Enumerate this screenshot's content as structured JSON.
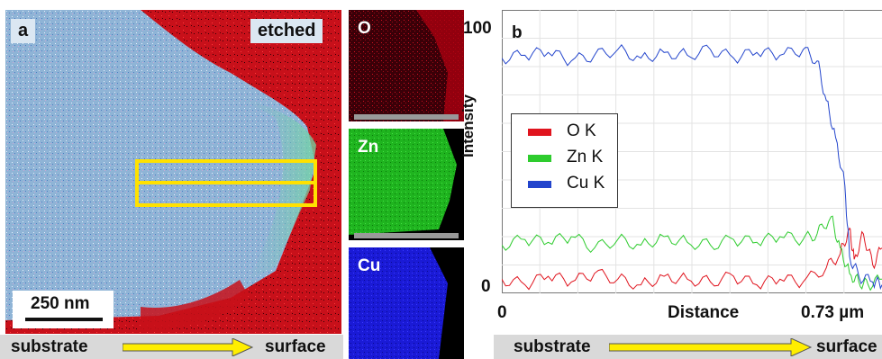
{
  "panel_a": {
    "label": "a",
    "tag": "etched",
    "scale_bar": "250 nm"
  },
  "maps": [
    {
      "label": "O",
      "color": "#b00010",
      "scale_color": "#999999"
    },
    {
      "label": "Zn",
      "color": "#1fb41f",
      "scale_color": "#999999"
    },
    {
      "label": "Cu",
      "color": "#1a1ad6",
      "scale_color": "#999999"
    }
  ],
  "direction": {
    "left_label": "substrate",
    "right_label": "surface",
    "arrow_color": "#ffee00"
  },
  "colors": {
    "oxygen_red": "#e0141e",
    "zinc_green": "#2ecc2e",
    "copper_blue": "#2244cc",
    "etch_region_blue": "#8fb4d6",
    "selection_box": "#ffe100"
  },
  "chart_data": {
    "type": "line",
    "panel_label": "b",
    "title": "",
    "xlabel": "Distance",
    "ylabel": "Intensity",
    "x_ticks": [
      "0",
      "0.73 µm"
    ],
    "y_ticks": [
      "0",
      "100"
    ],
    "xlim": [
      0,
      0.82
    ],
    "ylim": [
      0,
      100
    ],
    "grid": true,
    "legend": "center-left",
    "series": [
      {
        "name": "O K",
        "color": "#e0141e",
        "x": [
          0.0,
          0.05,
          0.1,
          0.15,
          0.2,
          0.25,
          0.3,
          0.35,
          0.4,
          0.45,
          0.5,
          0.55,
          0.6,
          0.65,
          0.7,
          0.73,
          0.75,
          0.76,
          0.78,
          0.8,
          0.82
        ],
        "y": [
          5,
          3,
          6,
          4,
          7,
          5,
          3,
          6,
          5,
          4,
          6,
          3,
          5,
          4,
          9,
          14,
          23,
          12,
          21,
          10,
          16
        ]
      },
      {
        "name": "Zn K",
        "color": "#2ecc2e",
        "x": [
          0.0,
          0.05,
          0.1,
          0.15,
          0.2,
          0.25,
          0.3,
          0.35,
          0.4,
          0.45,
          0.5,
          0.55,
          0.6,
          0.65,
          0.68,
          0.71,
          0.73,
          0.75,
          0.77,
          0.79,
          0.82
        ],
        "y": [
          17,
          19,
          18,
          20,
          16,
          19,
          17,
          20,
          18,
          17,
          19,
          18,
          20,
          19,
          21,
          27,
          16,
          7,
          4,
          3,
          5
        ]
      },
      {
        "name": "Cu K",
        "color": "#2244cc",
        "x": [
          0.0,
          0.05,
          0.1,
          0.15,
          0.2,
          0.25,
          0.3,
          0.35,
          0.4,
          0.45,
          0.5,
          0.55,
          0.6,
          0.65,
          0.68,
          0.7,
          0.72,
          0.74,
          0.75,
          0.77,
          0.8,
          0.82
        ],
        "y": [
          83,
          84,
          85,
          82,
          84,
          86,
          83,
          85,
          84,
          86,
          83,
          85,
          84,
          86,
          82,
          68,
          55,
          38,
          13,
          6,
          4,
          3
        ]
      }
    ]
  }
}
